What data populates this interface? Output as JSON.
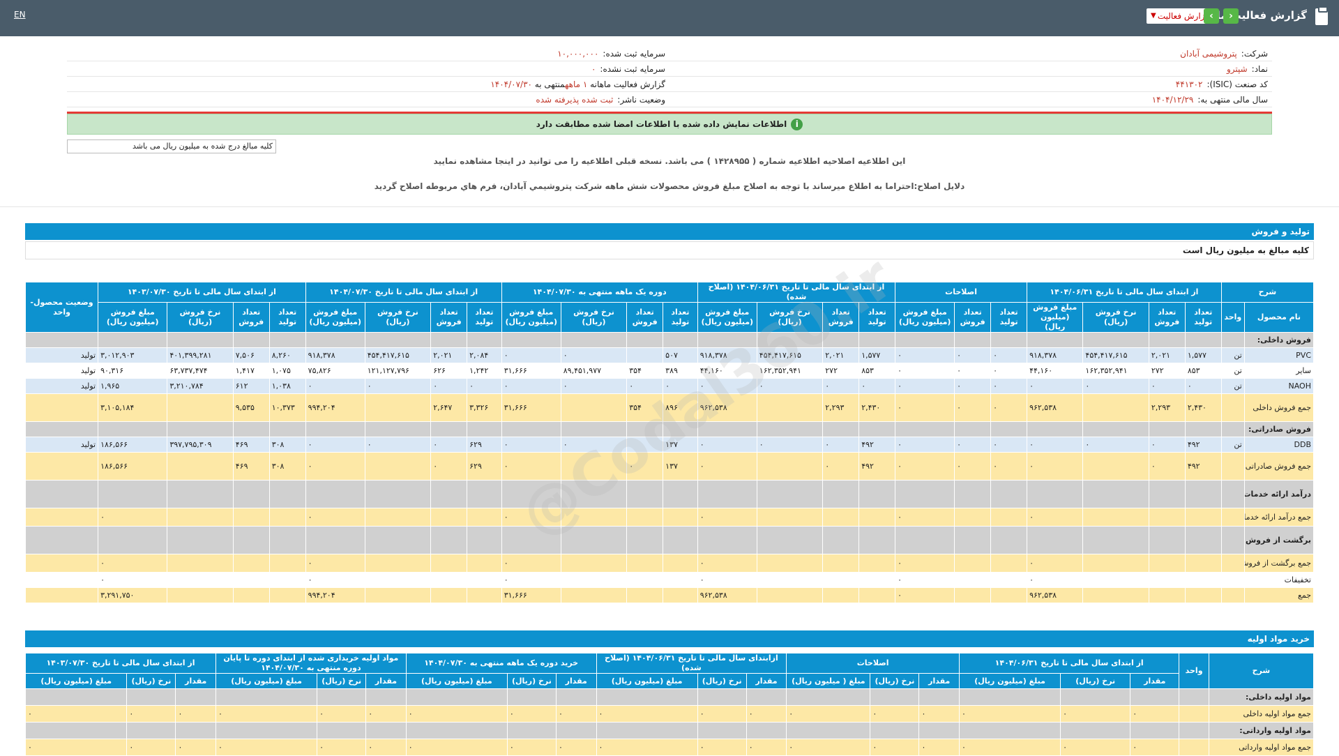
{
  "header": {
    "title": "گزارش فعالیت ماهانه",
    "report_select": "گزارش فعالیت",
    "lang": "EN"
  },
  "company": {
    "name_label": "شرکت:",
    "name": "پتروشیمی آبادان",
    "symbol_label": "نماد:",
    "symbol": "شپترو",
    "isic_label": "کد صنعت (ISIC):",
    "isic": "۴۴۱۳۰۲",
    "fy_label": "سال مالی منتهی به:",
    "fy": "۱۴۰۴/۱۲/۲۹",
    "cap_label": "سرمایه ثبت شده:",
    "cap": "۱۰,۰۰۰,۰۰۰",
    "capu_label": "سرمایه ثبت نشده:",
    "capu": "۰",
    "period_label": "گزارش فعالیت ماهانه",
    "period": "۱ ماهه",
    "period_end_label": "منتهی به",
    "period_end": "۱۴۰۴/۰۷/۳۰",
    "status_label": "وضعیت ناشر:",
    "status": "ثبت شده پذیرفته شده"
  },
  "alert": "اطلاعات نمایش داده شده با اطلاعات امضا شده مطابقت دارد",
  "unit_note": "کلیه مبالغ درج شده به میلیون ریال می باشد",
  "notice_1": "این اطلاعیه اصلاحیه اطلاعیه شماره ( ۱۴۲۸۹۵۵ ) می باشد. نسخه قبلی اطلاعیه را می توانید در اینجا مشاهده نمایید",
  "notice_2": "دلایل اصلاح:احتراما به اطلاع میرساند با توجه به اصلاح مبلغ فروش محصولات شش ماهه شرکت پتروشیمي آبادان، فرم هاي مربوطه اصلاح گردید",
  "section_sales": "تولید و فروش",
  "section_sales_note": "کلیه مبالغ به میلیون ریال است",
  "watermark": "@Codal360.ir",
  "sales": {
    "groups": [
      "شرح",
      "از ابتدای سال مالی تا تاریخ ۱۴۰۴/۰۶/۳۱",
      "اصلاحات",
      "از ابتدای سال مالی تا تاریخ ۱۴۰۴/۰۶/۳۱ (اصلاح شده)",
      "دوره یک ماهه منتهی به ۱۴۰۴/۰۷/۳۰",
      "از ابتدای سال مالی تا تاریخ ۱۴۰۴/۰۷/۳۰",
      "از ابتدای سال مالی تا تاریخ ۱۴۰۳/۰۷/۳۰",
      "وضعیت محصول-واحد"
    ],
    "cols": [
      "نام محصول",
      "واحد",
      "تعداد تولید",
      "تعداد فروش",
      "نرخ فروش (ریال)",
      "مبلغ فروش (میلیون ریال)",
      "تعداد تولید",
      "تعداد فروش",
      "مبلغ فروش (میلیون ریال)",
      "تعداد تولید",
      "تعداد فروش",
      "نرخ فروش (ریال)",
      "مبلغ فروش (میلیون ریال)",
      "تعداد تولید",
      "تعداد فروش",
      "نرخ فروش (ریال)",
      "مبلغ فروش (میلیون ریال)",
      "تعداد تولید",
      "تعداد فروش",
      "نرخ فروش (ریال)",
      "مبلغ فروش (میلیون ریال)",
      "تعداد تولید",
      "تعداد فروش",
      "نرخ فروش (ریال)",
      "مبلغ فروش (میلیون ریال)"
    ],
    "rows": [
      {
        "t": "gray",
        "c": [
          "فروش داخلی:",
          "",
          "",
          "",
          "",
          "",
          "",
          "",
          "",
          "",
          "",
          "",
          "",
          "",
          "",
          "",
          "",
          "",
          "",
          "",
          "",
          "",
          "",
          "",
          "",
          ""
        ]
      },
      {
        "t": "blue",
        "c": [
          "PVC",
          "تن",
          "۱,۵۷۷",
          "۲,۰۲۱",
          "۴۵۴,۴۱۷,۶۱۵",
          "۹۱۸,۳۷۸",
          "۰",
          "۰",
          "۰",
          "۱,۵۷۷",
          "۲,۰۲۱",
          "۴۵۴,۴۱۷,۶۱۵",
          "۹۱۸,۳۷۸",
          "۵۰۷",
          "",
          "۰",
          "۰",
          "۲,۰۸۴",
          "۲,۰۲۱",
          "۴۵۴,۴۱۷,۶۱۵",
          "۹۱۸,۳۷۸",
          "۸,۲۶۰",
          "۷,۵۰۶",
          "۴۰۱,۳۹۹,۲۸۱",
          "۳,۰۱۲,۹۰۳",
          "تولید"
        ]
      },
      {
        "t": "white",
        "c": [
          "سایر",
          "تن",
          "۸۵۳",
          "۲۷۲",
          "۱۶۲,۳۵۲,۹۴۱",
          "۴۴,۱۶۰",
          "۰",
          "۰",
          "۰",
          "۸۵۳",
          "۲۷۲",
          "۱۶۲,۳۵۲,۹۴۱",
          "۴۴,۱۶۰",
          "۳۸۹",
          "۳۵۴",
          "۸۹,۴۵۱,۹۷۷",
          "۳۱,۶۶۶",
          "۱,۲۴۲",
          "۶۲۶",
          "۱۲۱,۱۲۷,۷۹۶",
          "۷۵,۸۲۶",
          "۱,۰۷۵",
          "۱,۴۱۷",
          "۶۳,۷۳۷,۴۷۴",
          "۹۰,۳۱۶",
          "تولید"
        ]
      },
      {
        "t": "blue",
        "c": [
          "NAOH",
          "تن",
          "۰",
          "۰",
          "۰",
          "۰",
          "۰",
          "۰",
          "۰",
          "۰",
          "۰",
          "۰",
          "۰",
          "۰",
          "۰",
          "۰",
          "۰",
          "۰",
          "۰",
          "۰",
          "۰",
          "۱,۰۳۸",
          "۶۱۲",
          "۳,۲۱۰,۷۸۴",
          "۱,۹۶۵",
          "تولید"
        ]
      },
      {
        "t": "yel",
        "c": [
          "جمع فروش داخلی",
          "",
          "۲,۴۳۰",
          "۲,۲۹۳",
          "",
          "۹۶۲,۵۳۸",
          "۰",
          "۰",
          "۰",
          "۲,۴۳۰",
          "۲,۲۹۳",
          "",
          "۹۶۲,۵۳۸",
          "۸۹۶",
          "۳۵۴",
          "",
          "۳۱,۶۶۶",
          "۳,۳۲۶",
          "۲,۶۴۷",
          "",
          "۹۹۴,۲۰۴",
          "۱۰,۳۷۳",
          "۹,۵۳۵",
          "",
          "۳,۱۰۵,۱۸۴",
          ""
        ]
      },
      {
        "t": "gray",
        "c": [
          "فروش صادراتی:",
          "",
          "",
          "",
          "",
          "",
          "",
          "",
          "",
          "",
          "",
          "",
          "",
          "",
          "",
          "",
          "",
          "",
          "",
          "",
          "",
          "",
          "",
          "",
          "",
          ""
        ]
      },
      {
        "t": "blue",
        "c": [
          "DDB",
          "تن",
          "۴۹۲",
          "۰",
          "۰",
          "۰",
          "۰",
          "۰",
          "۰",
          "۴۹۲",
          "۰",
          "۰",
          "۰",
          "۱۳۷",
          "",
          "۰",
          "۰",
          "۶۲۹",
          "۰",
          "۰",
          "۰",
          "۳۰۸",
          "۴۶۹",
          "۳۹۷,۷۹۵,۳۰۹",
          "۱۸۶,۵۶۶",
          "تولید"
        ]
      },
      {
        "t": "yel",
        "c": [
          "جمع فروش صادراتی",
          "",
          "۴۹۲",
          "۰",
          "",
          "۰",
          "۰",
          "۰",
          "۰",
          "۴۹۲",
          "۰",
          "",
          "۰",
          "۱۳۷",
          "۰",
          "",
          "۰",
          "۶۲۹",
          "۰",
          "",
          "۰",
          "۳۰۸",
          "۴۶۹",
          "",
          "۱۸۶,۵۶۶",
          ""
        ]
      },
      {
        "t": "gray",
        "c": [
          "درآمد ارائه خدمات:",
          "",
          "",
          "",
          "",
          "",
          "",
          "",
          "",
          "",
          "",
          "",
          "",
          "",
          "",
          "",
          "",
          "",
          "",
          "",
          "",
          "",
          "",
          "",
          "",
          ""
        ]
      },
      {
        "t": "yel",
        "c": [
          "جمع درآمد ارائه خدمات",
          "",
          "",
          "",
          "",
          "۰",
          "",
          "",
          "۰",
          "",
          "",
          "",
          "۰",
          "",
          "",
          "",
          "۰",
          "",
          "",
          "",
          "۰",
          "",
          "",
          "",
          "۰",
          ""
        ]
      },
      {
        "t": "gray",
        "c": [
          "برگشت از فروش:",
          "",
          "",
          "",
          "",
          "",
          "",
          "",
          "",
          "",
          "",
          "",
          "",
          "",
          "",
          "",
          "",
          "",
          "",
          "",
          "",
          "",
          "",
          "",
          "",
          ""
        ]
      },
      {
        "t": "yel",
        "c": [
          "جمع برگشت از فروش",
          "",
          "",
          "",
          "",
          "۰",
          "",
          "",
          "۰",
          "",
          "",
          "",
          "۰",
          "",
          "",
          "",
          "۰",
          "",
          "",
          "",
          "۰",
          "",
          "",
          "",
          "۰",
          ""
        ]
      },
      {
        "t": "white",
        "c": [
          "تخفیفات",
          "",
          "",
          "",
          "",
          "۰",
          "",
          "",
          "۰",
          "",
          "",
          "",
          "۰",
          "",
          "",
          "",
          "۰",
          "",
          "",
          "",
          "۰",
          "",
          "",
          "",
          "۰",
          ""
        ]
      },
      {
        "t": "yel",
        "c": [
          "جمع",
          "",
          "",
          "",
          "",
          "۹۶۲,۵۳۸",
          "",
          "",
          "۰",
          "",
          "",
          "",
          "۹۶۲,۵۳۸",
          "",
          "",
          "",
          "۳۱,۶۶۶",
          "",
          "",
          "",
          "۹۹۴,۲۰۴",
          "",
          "",
          "",
          "۳,۲۹۱,۷۵۰",
          ""
        ]
      }
    ]
  },
  "section_raw": "خرید مواد اولیه",
  "raw": {
    "groups": [
      "شرح",
      "واحد",
      "از ابتدای سال مالی تا تاریخ ۱۴۰۴/۰۶/۳۱",
      "اصلاحات",
      "ازابتدای سال مالی تا تاریخ ۱۴۰۴/۰۶/۳۱ (اصلاح شده)",
      "خرید دوره یک ماهه منتهی به ۱۴۰۴/۰۷/۳۰",
      "مواد اولیه خریداری شده از ابتدای دوره تا پایان دوره منتهی به ۱۴۰۴/۰۷/۳۰",
      "از ابتدای سال مالی تا تاریخ ۱۴۰۳/۰۷/۳۰"
    ],
    "cols": [
      "مقدار",
      "نرخ (ریال)",
      "مبلغ (میلیون ریال)",
      "مقدار",
      "نرخ (ریال)",
      "مبلغ ( میلیون ریال)",
      "مقدار",
      "نرخ (ریال)",
      "مبلغ (میلیون ریال)",
      "مقدار",
      "نرخ (ریال)",
      "مبلغ (میلیون ریال)",
      "مقدار",
      "نرخ (ریال)",
      "مبلغ (میلیون ریال)",
      "مقدار",
      "نرخ (ریال)",
      "مبلغ (میلیون ریال)"
    ],
    "rows": [
      {
        "t": "gray",
        "c": [
          "مواد اولیه داخلی:",
          "",
          "",
          "",
          "",
          "",
          "",
          "",
          "",
          "",
          "",
          "",
          "",
          "",
          "",
          "",
          "",
          "",
          "",
          ""
        ]
      },
      {
        "t": "yel",
        "c": [
          "جمع مواد اولیه داخلی",
          "",
          "۰",
          "۰",
          "۰",
          "۰",
          "۰",
          "۰",
          "۰",
          "۰",
          "۰",
          "۰",
          "۰",
          "۰",
          "۰",
          "۰",
          "۰",
          "۰",
          "۰",
          "۰"
        ]
      },
      {
        "t": "gray",
        "c": [
          "مواد اولیه وارداتی:",
          "",
          "",
          "",
          "",
          "",
          "",
          "",
          "",
          "",
          "",
          "",
          "",
          "",
          "",
          "",
          "",
          "",
          "",
          ""
        ]
      },
      {
        "t": "yel",
        "c": [
          "جمع مواد اولیه وارداتی",
          "",
          "۰",
          "۰",
          "۰",
          "۰",
          "۰",
          "۰",
          "۰",
          "۰",
          "۰",
          "۰",
          "۰",
          "۰",
          "۰",
          "۰",
          "۰",
          "۰",
          "۰",
          "۰"
        ]
      }
    ]
  }
}
